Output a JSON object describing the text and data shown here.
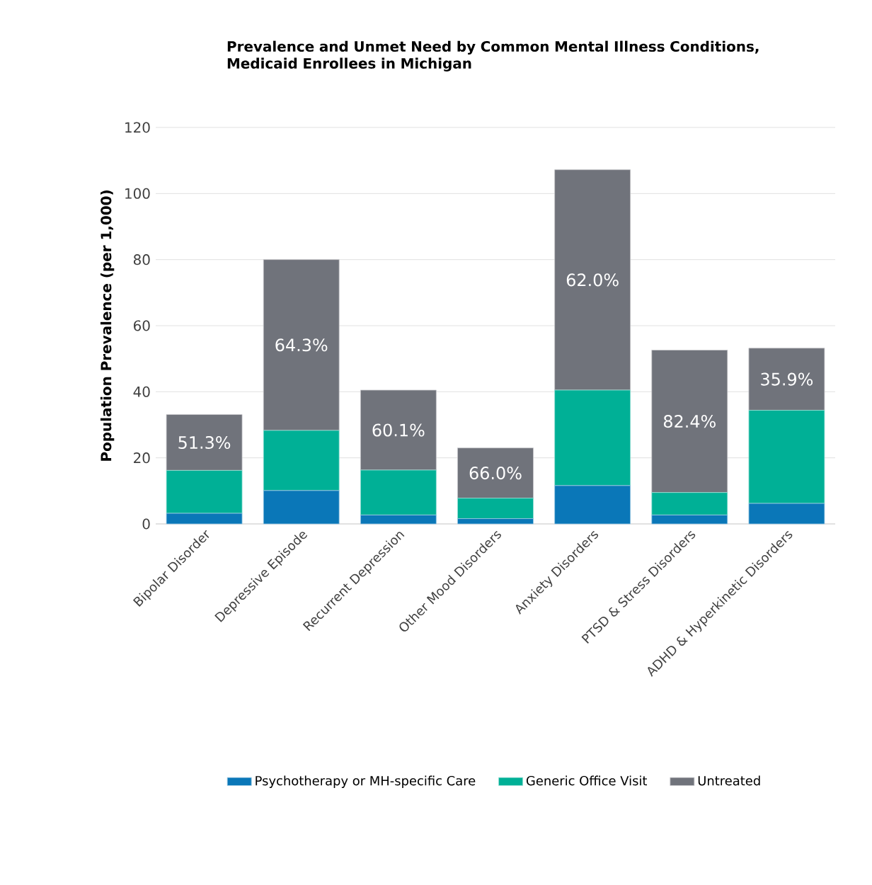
{
  "chart_data": {
    "type": "bar",
    "stacked": true,
    "title": "Prevalence and Unmet Need by Common Mental Illness Conditions, Medicaid Enrollees in Michigan",
    "ylabel": "Population  Prevalence (per 1,000)",
    "categories": [
      "Bipolar Disorder",
      "Depressive Episode",
      "Recurrent Depression",
      "Other Mood Disorders",
      "Anxiety Disorders",
      "PTSD & Stress Disorders",
      "ADHD & Hyperkinetic Disorders"
    ],
    "series": [
      {
        "name": "Psychotherapy or MH-specific Care",
        "color": "#0a77b8",
        "values": [
          3.2,
          10.1,
          2.7,
          1.6,
          11.6,
          2.7,
          6.2
        ]
      },
      {
        "name": "Generic Office Visit",
        "color": "#00b096",
        "values": [
          13.0,
          18.2,
          13.6,
          6.2,
          28.9,
          6.8,
          28.2
        ]
      },
      {
        "name": "Untreated",
        "color": "#70737b",
        "values": [
          16.9,
          51.7,
          24.2,
          15.2,
          66.7,
          43.1,
          18.8
        ]
      }
    ],
    "annotations": [
      "51.3%",
      "64.3%",
      "60.1%",
      "66.0%",
      "62.0%",
      "82.4%",
      "35.9%"
    ],
    "ylim": [
      0,
      120
    ],
    "yticks": [
      0,
      20,
      40,
      60,
      80,
      100,
      120
    ],
    "grid": "y",
    "legend": "bottom"
  }
}
